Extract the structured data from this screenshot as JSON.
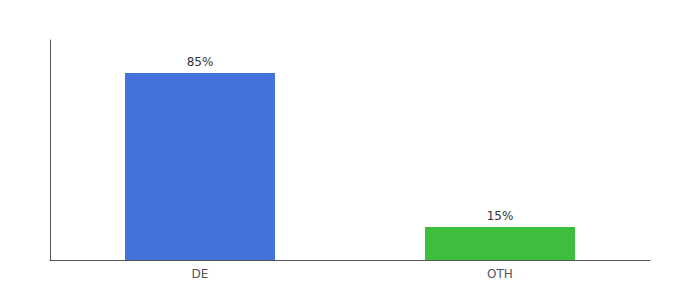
{
  "chart_data": {
    "type": "bar",
    "categories": [
      "DE",
      "OTH"
    ],
    "values": [
      85,
      15
    ],
    "value_labels": [
      "85%",
      "15%"
    ],
    "colors": [
      "#4472db",
      "#3dbf3d"
    ],
    "ylim": [
      0,
      100
    ],
    "data_labels": true,
    "tick_labels": "x",
    "grid": false
  }
}
